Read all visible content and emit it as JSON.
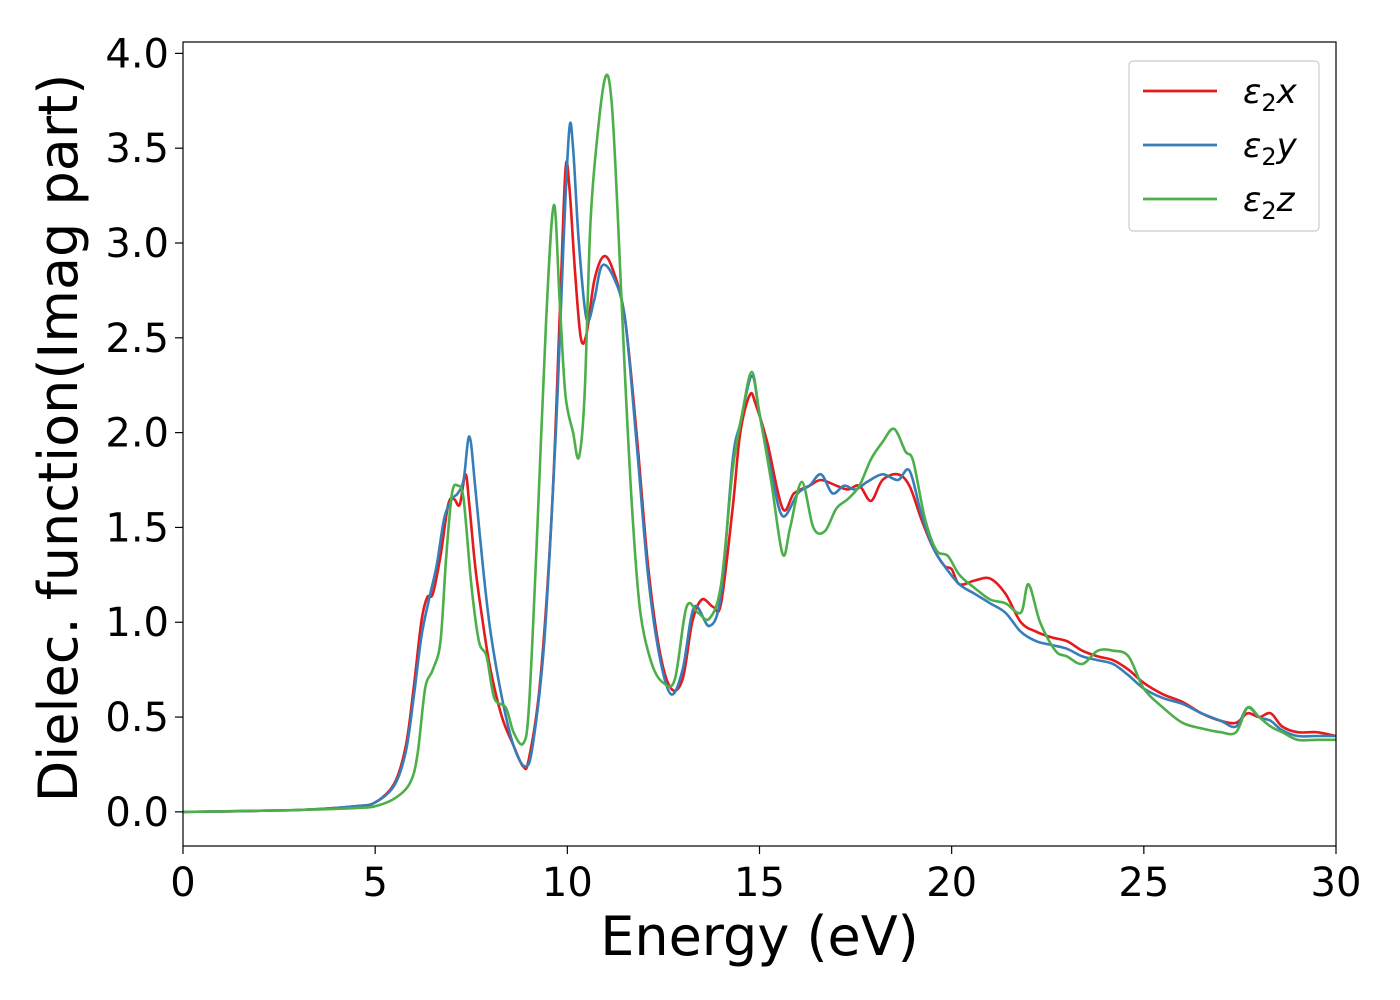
{
  "chart_data": {
    "type": "line",
    "title": "",
    "xlabel": "Energy (eV)",
    "ylabel": "Dielec. function(Imag part)",
    "xlim": [
      0,
      30
    ],
    "ylim": [
      -0.18,
      4.06
    ],
    "xticks": [
      0,
      5,
      10,
      15,
      20,
      25,
      30
    ],
    "yticks": [
      0.0,
      0.5,
      1.0,
      1.5,
      2.0,
      2.5,
      3.0,
      3.5,
      4.0
    ],
    "xtick_labels": [
      "0",
      "5",
      "10",
      "15",
      "20",
      "25",
      "30"
    ],
    "ytick_labels": [
      "0.0",
      "0.5",
      "1.0",
      "1.5",
      "2.0",
      "2.5",
      "3.0",
      "3.5",
      "4.0"
    ],
    "grid": false,
    "legend_position": "top-right",
    "series": [
      {
        "name": "ε₂x",
        "legend_base": "ε",
        "legend_sub": "2",
        "legend_suffix": "x",
        "color": "#e41a1c",
        "x": [
          0,
          3,
          4.5,
          5,
          5.5,
          5.8,
          6.0,
          6.2,
          6.35,
          6.5,
          6.7,
          6.9,
          7.05,
          7.2,
          7.35,
          7.45,
          7.6,
          7.8,
          8.0,
          8.3,
          8.6,
          8.85,
          9.0,
          9.3,
          9.6,
          9.8,
          9.95,
          10.05,
          10.2,
          10.35,
          10.5,
          10.7,
          10.95,
          11.2,
          11.5,
          11.8,
          12.1,
          12.4,
          12.7,
          13.0,
          13.25,
          13.5,
          13.8,
          14.0,
          14.3,
          14.5,
          14.75,
          14.9,
          15.2,
          15.6,
          15.9,
          16.3,
          16.6,
          17.0,
          17.3,
          17.6,
          17.9,
          18.2,
          18.6,
          18.9,
          19.2,
          19.5,
          19.8,
          20.0,
          20.2,
          20.6,
          21.0,
          21.4,
          21.8,
          22.2,
          22.6,
          23.0,
          23.4,
          23.8,
          24.2,
          24.6,
          25.0,
          25.5,
          26.0,
          26.5,
          27.0,
          27.4,
          27.7,
          28.0,
          28.3,
          28.6,
          29.0,
          29.5,
          30.0
        ],
        "y": [
          0.0,
          0.01,
          0.03,
          0.05,
          0.15,
          0.35,
          0.65,
          1.0,
          1.13,
          1.15,
          1.35,
          1.62,
          1.65,
          1.62,
          1.78,
          1.62,
          1.3,
          1.0,
          0.75,
          0.5,
          0.35,
          0.24,
          0.28,
          0.7,
          1.6,
          2.6,
          3.38,
          3.3,
          2.85,
          2.5,
          2.52,
          2.8,
          2.93,
          2.85,
          2.6,
          2.0,
          1.3,
          0.85,
          0.65,
          0.7,
          1.0,
          1.12,
          1.08,
          1.1,
          1.6,
          2.0,
          2.2,
          2.15,
          1.95,
          1.6,
          1.68,
          1.72,
          1.75,
          1.72,
          1.7,
          1.72,
          1.64,
          1.75,
          1.78,
          1.72,
          1.55,
          1.4,
          1.3,
          1.28,
          1.2,
          1.22,
          1.23,
          1.15,
          1.0,
          0.95,
          0.92,
          0.9,
          0.85,
          0.82,
          0.8,
          0.75,
          0.68,
          0.62,
          0.58,
          0.52,
          0.48,
          0.47,
          0.52,
          0.5,
          0.52,
          0.45,
          0.42,
          0.42,
          0.4
        ]
      },
      {
        "name": "ε₂y",
        "legend_base": "ε",
        "legend_sub": "2",
        "legend_suffix": "y",
        "color": "#377eb8",
        "x": [
          0,
          3,
          4.5,
          5,
          5.5,
          5.8,
          6.0,
          6.2,
          6.4,
          6.6,
          6.8,
          7.0,
          7.15,
          7.3,
          7.45,
          7.6,
          7.8,
          8.0,
          8.3,
          8.6,
          8.9,
          9.1,
          9.4,
          9.7,
          9.9,
          10.05,
          10.15,
          10.3,
          10.5,
          10.7,
          10.9,
          11.2,
          11.5,
          11.8,
          12.1,
          12.4,
          12.7,
          13.0,
          13.3,
          13.7,
          14.0,
          14.3,
          14.5,
          14.8,
          15.0,
          15.3,
          15.6,
          16.0,
          16.3,
          16.6,
          16.9,
          17.2,
          17.5,
          17.8,
          18.2,
          18.6,
          18.9,
          19.2,
          19.5,
          19.8,
          20.2,
          20.6,
          21.0,
          21.4,
          21.8,
          22.2,
          22.6,
          23.0,
          23.4,
          23.8,
          24.2,
          24.6,
          25.0,
          25.5,
          26.0,
          26.5,
          27.0,
          27.4,
          27.7,
          28.0,
          28.3,
          28.6,
          29.0,
          29.5,
          30.0
        ],
        "y": [
          0.0,
          0.01,
          0.03,
          0.05,
          0.14,
          0.32,
          0.6,
          0.92,
          1.12,
          1.3,
          1.55,
          1.65,
          1.68,
          1.75,
          1.98,
          1.72,
          1.3,
          0.95,
          0.6,
          0.35,
          0.24,
          0.35,
          0.9,
          2.0,
          3.0,
          3.6,
          3.5,
          3.0,
          2.6,
          2.7,
          2.88,
          2.82,
          2.6,
          1.95,
          1.25,
          0.82,
          0.62,
          0.75,
          1.08,
          0.98,
          1.15,
          1.85,
          2.05,
          2.3,
          2.1,
          1.8,
          1.56,
          1.68,
          1.72,
          1.78,
          1.68,
          1.72,
          1.7,
          1.74,
          1.78,
          1.75,
          1.8,
          1.58,
          1.4,
          1.3,
          1.2,
          1.15,
          1.1,
          1.05,
          0.95,
          0.9,
          0.88,
          0.86,
          0.82,
          0.8,
          0.78,
          0.72,
          0.65,
          0.6,
          0.57,
          0.52,
          0.48,
          0.45,
          0.55,
          0.5,
          0.48,
          0.43,
          0.4,
          0.4,
          0.4
        ]
      },
      {
        "name": "ε₂z",
        "legend_base": "ε",
        "legend_sub": "2",
        "legend_suffix": "z",
        "color": "#4daf4a",
        "x": [
          0,
          3,
          4.5,
          5,
          5.5,
          5.9,
          6.1,
          6.3,
          6.5,
          6.7,
          6.85,
          7.0,
          7.15,
          7.3,
          7.5,
          7.7,
          7.9,
          8.1,
          8.4,
          8.6,
          8.85,
          9.0,
          9.2,
          9.45,
          9.65,
          9.8,
          9.95,
          10.15,
          10.3,
          10.45,
          10.6,
          10.8,
          11.0,
          11.15,
          11.3,
          11.5,
          11.7,
          11.9,
          12.2,
          12.5,
          12.8,
          13.1,
          13.4,
          13.7,
          14.0,
          14.3,
          14.55,
          14.8,
          15.0,
          15.3,
          15.6,
          15.8,
          16.1,
          16.4,
          16.7,
          17.0,
          17.3,
          17.6,
          17.9,
          18.2,
          18.5,
          18.8,
          19.0,
          19.3,
          19.6,
          19.9,
          20.2,
          20.6,
          21.0,
          21.4,
          21.8,
          22.0,
          22.3,
          22.7,
          23.0,
          23.4,
          23.8,
          24.2,
          24.6,
          25.0,
          25.5,
          26.0,
          26.5,
          27.0,
          27.4,
          27.7,
          28.0,
          28.3,
          28.6,
          29.0,
          29.5,
          30.0
        ],
        "y": [
          0.0,
          0.01,
          0.02,
          0.03,
          0.07,
          0.15,
          0.3,
          0.65,
          0.75,
          0.9,
          1.35,
          1.68,
          1.72,
          1.65,
          1.2,
          0.9,
          0.82,
          0.6,
          0.55,
          0.42,
          0.36,
          0.55,
          1.4,
          2.6,
          3.2,
          2.7,
          2.2,
          2.0,
          1.87,
          2.2,
          3.1,
          3.6,
          3.88,
          3.75,
          3.2,
          2.3,
          1.55,
          1.05,
          0.78,
          0.68,
          0.7,
          1.08,
          1.05,
          1.02,
          1.2,
          1.8,
          2.1,
          2.32,
          2.1,
          1.75,
          1.36,
          1.5,
          1.74,
          1.5,
          1.48,
          1.6,
          1.65,
          1.72,
          1.86,
          1.95,
          2.02,
          1.9,
          1.85,
          1.55,
          1.38,
          1.35,
          1.25,
          1.18,
          1.12,
          1.1,
          1.05,
          1.2,
          1.0,
          0.85,
          0.82,
          0.78,
          0.85,
          0.85,
          0.82,
          0.65,
          0.55,
          0.47,
          0.44,
          0.42,
          0.42,
          0.55,
          0.5,
          0.45,
          0.42,
          0.38,
          0.38,
          0.38
        ]
      }
    ]
  }
}
